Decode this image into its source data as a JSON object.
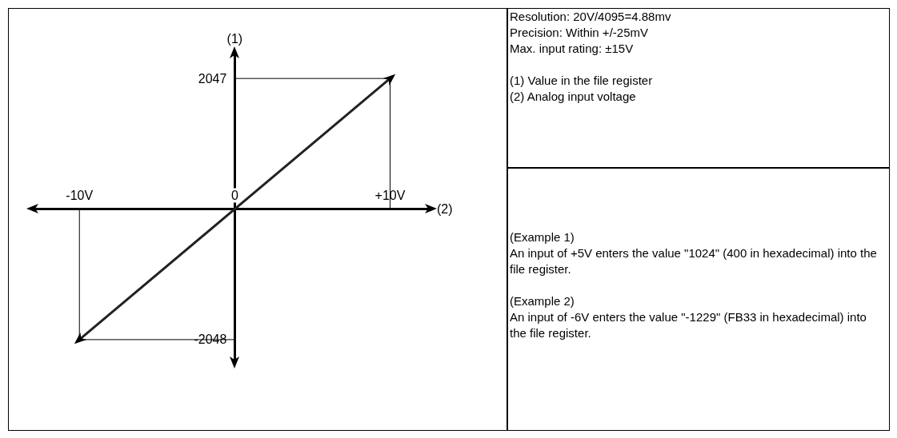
{
  "chart_data": {
    "type": "line",
    "xlabel": "(2)",
    "ylabel": "(1)",
    "xlim": [
      -13,
      12.6
    ],
    "ylim": [
      -2400,
      2450
    ],
    "xticks": [
      {
        "value": -10,
        "label": "-10V"
      },
      {
        "value": 0,
        "label": "0"
      },
      {
        "value": 10,
        "label": "+10V"
      }
    ],
    "yticks": [
      {
        "value": -2048,
        "label": "-2048"
      },
      {
        "value": 2047,
        "label": "2047"
      }
    ],
    "grid": false,
    "series": [
      {
        "color": "#222222",
        "x": [
          -10,
          10
        ],
        "values": [
          -2048,
          2047
        ]
      },
      {
        "color": "#000000",
        "x": [
          0,
          10,
          10
        ],
        "values": [
          2047,
          2047,
          0
        ]
      },
      {
        "color": "#000000",
        "x": [
          0,
          -10,
          -10
        ],
        "values": [
          -2048,
          -2048,
          0
        ]
      }
    ],
    "annotations": [
      "Resolution: 20V/4095=4.88mv\nPrecision: Within +/-25mV\nMax. input rating: ±15V",
      "(1) Value in the file register\n(2) Analog input voltage",
      "(Example 1)\nAn input of +5V enters the value \"1024\" (400 in hexadecimal) into the file register.",
      "(Example 2)\nAn input of -6V enters the value \"-1229\" (FB33 in hexadecimal) into the file register."
    ]
  }
}
